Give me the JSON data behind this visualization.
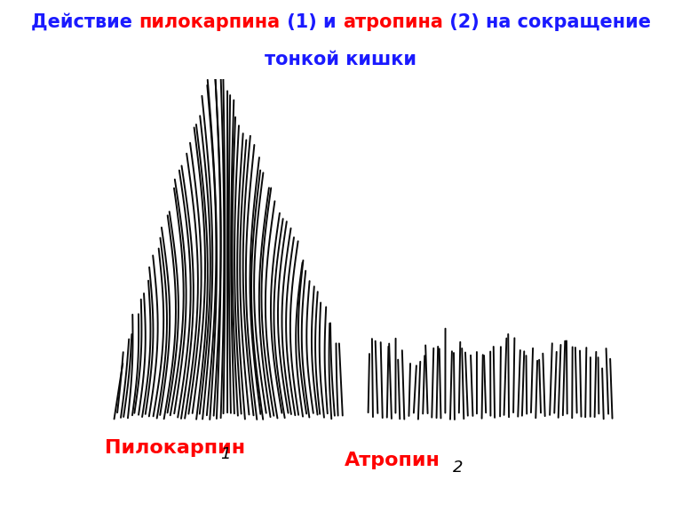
{
  "title_line1_parts": [
    {
      "text": "Действие ",
      "color": "#1a1aff"
    },
    {
      "text": "пилокарпина",
      "color": "#ff0000"
    },
    {
      "text": " (1) и ",
      "color": "#1a1aff"
    },
    {
      "text": "атропина",
      "color": "#ff0000"
    },
    {
      "text": " (2) на сокращение",
      "color": "#1a1aff"
    }
  ],
  "title_line2": {
    "text": "тонкой кишки",
    "color": "#1a1aff"
  },
  "header_bg": "#ff66ff",
  "bg_color": "#ffffff",
  "label1_text": "Пилокарпин",
  "label1_color": "#ff0000",
  "label1_num": "1",
  "label2_text": "Атропин",
  "label2_color": "#ff0000",
  "label2_num": "2",
  "line_color": "#0a0a0a",
  "title_fontsize": 15,
  "label_fontsize": 16
}
